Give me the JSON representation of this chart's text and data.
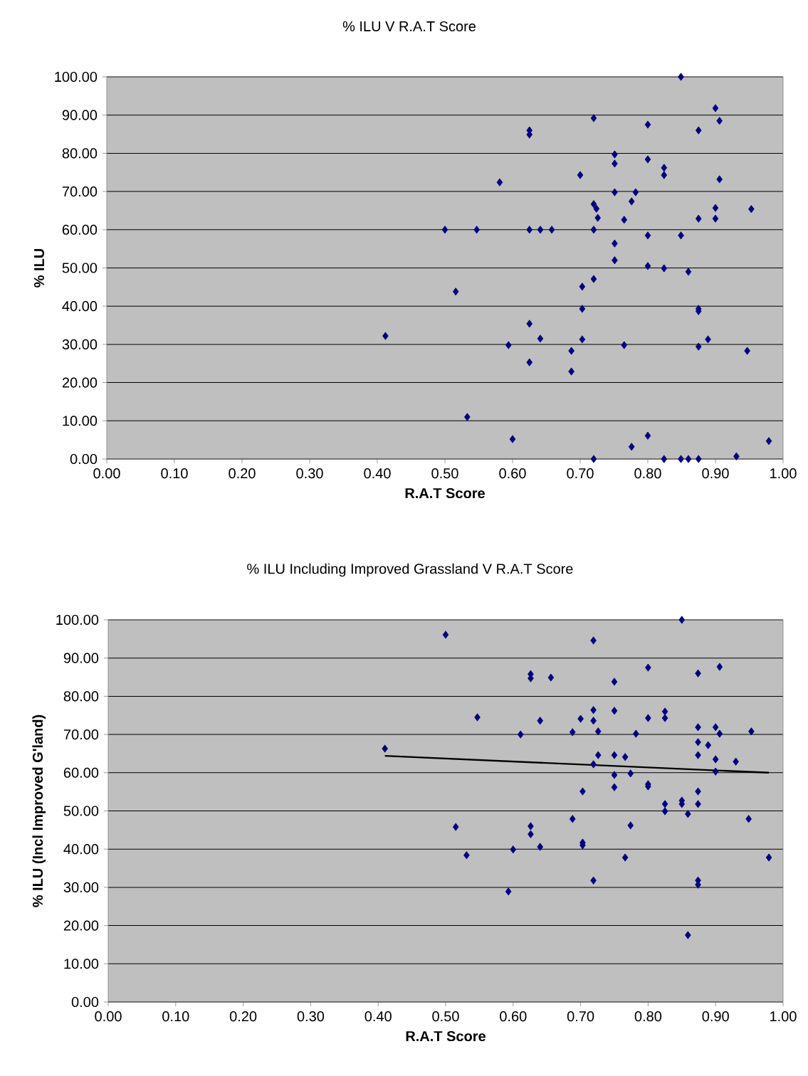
{
  "chart_data": [
    {
      "type": "scatter",
      "title": "% ILU V R.A.T Score",
      "xlabel": "R.A.T Score",
      "ylabel": "% ILU",
      "xlim": [
        0,
        1
      ],
      "ylim": [
        0,
        100
      ],
      "xticks": [
        {
          "value": 0,
          "label": "0.00"
        },
        {
          "value": 0.1,
          "label": "0.10"
        },
        {
          "value": 0.2,
          "label": "0.20"
        },
        {
          "value": 0.3,
          "label": "0.30"
        },
        {
          "value": 0.4,
          "label": "0.40"
        },
        {
          "value": 0.5,
          "label": "0.50"
        },
        {
          "value": 0.6,
          "label": "0.60"
        },
        {
          "value": 0.7,
          "label": "0.70"
        },
        {
          "value": 0.8,
          "label": "0.80"
        },
        {
          "value": 0.9,
          "label": "0.90"
        },
        {
          "value": 1,
          "label": "1.00"
        }
      ],
      "yticks": [
        {
          "value": 0,
          "label": "0.00"
        },
        {
          "value": 10,
          "label": "10.00"
        },
        {
          "value": 20,
          "label": "20.00"
        },
        {
          "value": 30,
          "label": "30.00"
        },
        {
          "value": 40,
          "label": "40.00"
        },
        {
          "value": 50,
          "label": "50.00"
        },
        {
          "value": 60,
          "label": "60.00"
        },
        {
          "value": 70,
          "label": "70.00"
        },
        {
          "value": 80,
          "label": "80.00"
        },
        {
          "value": 90,
          "label": "90.00"
        },
        {
          "value": 100,
          "label": "100.00"
        }
      ],
      "grid": "y",
      "marker": "diamond",
      "series": [
        {
          "color": "#000080",
          "x": [
            0.412,
            0.5,
            0.516,
            0.533,
            0.547,
            0.581,
            0.594,
            0.6,
            0.625,
            0.625,
            0.625,
            0.625,
            0.625,
            0.641,
            0.641,
            0.658,
            0.687,
            0.687,
            0.7,
            0.703,
            0.703,
            0.703,
            0.72,
            0.72,
            0.724,
            0.72,
            0.726,
            0.72,
            0.72,
            0.751,
            0.751,
            0.751,
            0.751,
            0.751,
            0.765,
            0.765,
            0.776,
            0.782,
            0.776,
            0.8,
            0.8,
            0.8,
            0.8,
            0.8,
            0.824,
            0.824,
            0.824,
            0.824,
            0.849,
            0.849,
            0.849,
            0.86,
            0.86,
            0.875,
            0.875,
            0.875,
            0.875,
            0.875,
            0.875,
            0.889,
            0.9,
            0.9,
            0.9,
            0.906,
            0.906,
            0.931,
            0.947,
            0.953,
            0.979
          ],
          "values": [
            32.2,
            60.0,
            43.8,
            11.0,
            60.0,
            72.4,
            29.8,
            5.2,
            86.0,
            84.9,
            60.0,
            35.4,
            25.3,
            60.0,
            31.5,
            60.0,
            28.3,
            22.9,
            74.3,
            45.1,
            39.3,
            31.3,
            89.2,
            66.7,
            65.5,
            60.0,
            63.1,
            47.1,
            0,
            79.7,
            77.3,
            69.8,
            56.4,
            52.0,
            62.6,
            29.8,
            67.4,
            69.8,
            3.2,
            87.5,
            78.4,
            58.5,
            50.5,
            6.1,
            76.2,
            74.3,
            49.9,
            0,
            100,
            58.5,
            0,
            49.0,
            0,
            86.0,
            62.9,
            39.3,
            38.7,
            29.4,
            0,
            31.3,
            91.8,
            65.7,
            62.9,
            88.5,
            73.2,
            0.7,
            28.3,
            65.4,
            4.7
          ]
        }
      ]
    },
    {
      "type": "scatter",
      "title": "% ILU Including Improved Grassland V R.A.T Score",
      "xlabel": "R.A.T Score",
      "ylabel": "% ILU (Incl Improved G'land)",
      "xlim": [
        0,
        1
      ],
      "ylim": [
        0,
        100
      ],
      "xticks": [
        {
          "value": 0,
          "label": "0.00"
        },
        {
          "value": 0.1,
          "label": "0.10"
        },
        {
          "value": 0.2,
          "label": "0.20"
        },
        {
          "value": 0.3,
          "label": "0.30"
        },
        {
          "value": 0.4,
          "label": "0.40"
        },
        {
          "value": 0.5,
          "label": "0.50"
        },
        {
          "value": 0.6,
          "label": "0.60"
        },
        {
          "value": 0.7,
          "label": "0.70"
        },
        {
          "value": 0.8,
          "label": "0.80"
        },
        {
          "value": 0.9,
          "label": "0.90"
        },
        {
          "value": 1,
          "label": "1.00"
        }
      ],
      "yticks": [
        {
          "value": 0,
          "label": "0.00"
        },
        {
          "value": 10,
          "label": "10.00"
        },
        {
          "value": 20,
          "label": "20.00"
        },
        {
          "value": 30,
          "label": "30.00"
        },
        {
          "value": 40,
          "label": "40.00"
        },
        {
          "value": 50,
          "label": "50.00"
        },
        {
          "value": 60,
          "label": "60.00"
        },
        {
          "value": 70,
          "label": "70.00"
        },
        {
          "value": 80,
          "label": "80.00"
        },
        {
          "value": 90,
          "label": "90.00"
        },
        {
          "value": 100,
          "label": "100.00"
        }
      ],
      "grid": "y",
      "marker": "diamond",
      "series": [
        {
          "color": "#000080",
          "x": [
            0.41,
            0.5,
            0.515,
            0.531,
            0.547,
            0.593,
            0.6,
            0.611,
            0.626,
            0.626,
            0.626,
            0.626,
            0.64,
            0.64,
            0.656,
            0.688,
            0.688,
            0.7,
            0.703,
            0.703,
            0.703,
            0.719,
            0.719,
            0.719,
            0.719,
            0.719,
            0.726,
            0.726,
            0.75,
            0.75,
            0.75,
            0.75,
            0.75,
            0.766,
            0.766,
            0.774,
            0.774,
            0.782,
            0.8,
            0.8,
            0.8,
            0.8,
            0.825,
            0.825,
            0.825,
            0.825,
            0.85,
            0.85,
            0.85,
            0.859,
            0.859,
            0.874,
            0.874,
            0.874,
            0.874,
            0.874,
            0.874,
            0.874,
            0.874,
            0.889,
            0.9,
            0.9,
            0.9,
            0.906,
            0.906,
            0.93,
            0.949,
            0.953,
            0.979
          ],
          "values": [
            66.3,
            96.1,
            45.8,
            38.4,
            74.5,
            28.9,
            39.9,
            70.0,
            85.8,
            84.7,
            46.0,
            43.9,
            73.6,
            40.6,
            84.9,
            70.6,
            47.9,
            74.1,
            55.1,
            41.7,
            41.0,
            94.6,
            76.4,
            73.6,
            62.2,
            31.8,
            70.8,
            64.6,
            83.8,
            76.2,
            64.6,
            59.4,
            56.2,
            64.1,
            37.8,
            59.8,
            46.2,
            70.2,
            87.5,
            74.3,
            57.0,
            56.4,
            76.0,
            74.3,
            51.8,
            49.9,
            100,
            52.7,
            51.8,
            49.2,
            17.5,
            86.0,
            71.9,
            68.0,
            64.6,
            55.1,
            51.8,
            31.8,
            30.7,
            67.2,
            71.9,
            63.5,
            60.3,
            87.7,
            70.2,
            62.9,
            47.9,
            70.8,
            37.8
          ]
        },
        {
          "type": "line",
          "marker": "none",
          "color": "#000000",
          "x": [
            0.41,
            0.979
          ],
          "values": [
            64.4,
            60.0
          ]
        }
      ]
    }
  ]
}
